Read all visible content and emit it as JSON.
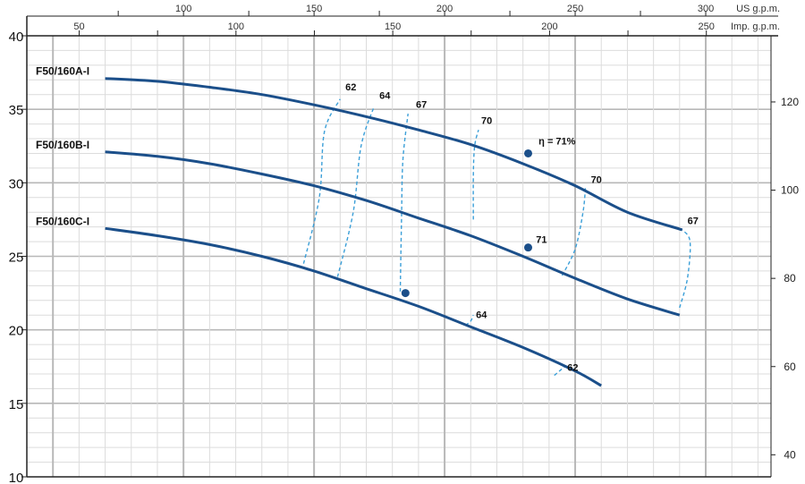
{
  "chart_data": {
    "type": "line",
    "title": "",
    "xlabel": "",
    "ylabel": "",
    "ylim": [
      10,
      40
    ],
    "ylim_right": [
      35,
      135
    ],
    "y_ticks": [
      10,
      15,
      20,
      25,
      30,
      35,
      40
    ],
    "y_ticks_right": [
      40,
      60,
      80,
      100,
      120
    ],
    "grid": true,
    "top_axis_us": {
      "label": "US g.p.m.",
      "ticks": [
        {
          "value": 100,
          "label": "100"
        },
        {
          "value": 150,
          "label": "150"
        },
        {
          "value": 200,
          "label": "200"
        },
        {
          "value": 250,
          "label": "250"
        },
        {
          "value": 300,
          "label": "300"
        }
      ]
    },
    "top_axis_imp": {
      "label": "Imp. g.p.m.",
      "ticks": [
        {
          "value": 50,
          "label": "50"
        },
        {
          "value": 100,
          "label": "100"
        },
        {
          "value": 150,
          "label": "150"
        },
        {
          "value": 200,
          "label": "200"
        },
        {
          "value": 250,
          "label": "250"
        }
      ]
    },
    "series": [
      {
        "name": "F50/160A-I",
        "x": [
          70,
          90,
          110,
          130,
          150,
          170,
          190,
          210,
          230,
          250,
          270,
          291
        ],
        "y": [
          37.1,
          36.9,
          36.5,
          36.0,
          35.3,
          34.5,
          33.6,
          32.6,
          31.3,
          29.8,
          28.0,
          26.8
        ]
      },
      {
        "name": "F50/160B-I",
        "x": [
          70,
          90,
          110,
          130,
          150,
          170,
          190,
          210,
          230,
          250,
          270,
          290
        ],
        "y": [
          32.1,
          31.8,
          31.3,
          30.6,
          29.8,
          28.8,
          27.6,
          26.4,
          25.0,
          23.5,
          22.1,
          21.0
        ]
      },
      {
        "name": "F50/160C-I",
        "x": [
          70,
          90,
          110,
          130,
          150,
          170,
          190,
          210,
          230,
          250,
          260
        ],
        "y": [
          26.9,
          26.4,
          25.8,
          25.0,
          24.0,
          22.8,
          21.6,
          20.2,
          18.8,
          17.2,
          16.2
        ]
      }
    ],
    "efficiency_curves": [
      {
        "label": "62",
        "x": [
          146,
          152,
          154,
          160
        ],
        "y": [
          24.5,
          29.0,
          33.5,
          35.7
        ]
      },
      {
        "label": "64",
        "x": [
          159,
          165,
          168,
          173
        ],
        "y": [
          23.6,
          28.0,
          32.5,
          35.2
        ]
      },
      {
        "label": "67",
        "x": [
          183,
          183.5,
          184,
          186
        ],
        "y": [
          22.6,
          27.5,
          31.5,
          34.7
        ]
      },
      {
        "label": "70",
        "x": [
          211,
          211,
          211.5,
          213
        ],
        "y": [
          27.5,
          30.5,
          32.5,
          33.6
        ]
      },
      {
        "label": "70",
        "x": [
          245,
          250,
          253,
          254
        ],
        "y": [
          23.7,
          25.5,
          28.0,
          29.8
        ]
      },
      {
        "label": "67",
        "x": [
          290,
          293,
          294,
          291
        ],
        "y": [
          21.5,
          23.5,
          26.0,
          26.8
        ]
      },
      {
        "label": "64",
        "x": [
          208,
          210,
          211
        ],
        "y": [
          20.3,
          20.6,
          21.0
        ]
      },
      {
        "label": "62",
        "x": [
          242,
          244,
          246
        ],
        "y": [
          16.9,
          17.2,
          17.5
        ]
      }
    ],
    "efficiency_labels": [
      {
        "text": "62",
        "x": 162,
        "y": 36.3
      },
      {
        "text": "64",
        "x": 175,
        "y": 35.7
      },
      {
        "text": "67",
        "x": 189,
        "y": 35.1
      },
      {
        "text": "70",
        "x": 214,
        "y": 34.0
      },
      {
        "text": "η = 71%",
        "x": 236,
        "y": 32.6
      },
      {
        "text": "70",
        "x": 256,
        "y": 30.0
      },
      {
        "text": "67",
        "x": 293,
        "y": 27.2
      },
      {
        "text": "71",
        "x": 235,
        "y": 25.9
      },
      {
        "text": "64",
        "x": 212,
        "y": 20.8
      },
      {
        "text": "62",
        "x": 247,
        "y": 17.2
      }
    ],
    "bep_points": [
      {
        "x": 232,
        "y": 32.0
      },
      {
        "x": 232,
        "y": 25.6
      },
      {
        "x": 185,
        "y": 22.5
      }
    ],
    "colors": {
      "curve": "#1b4f8a",
      "efficiency": "#3b9fd8",
      "grid_major": "#b8b8b8",
      "grid_minor": "#dcdcdc",
      "axis": "#222222"
    }
  }
}
